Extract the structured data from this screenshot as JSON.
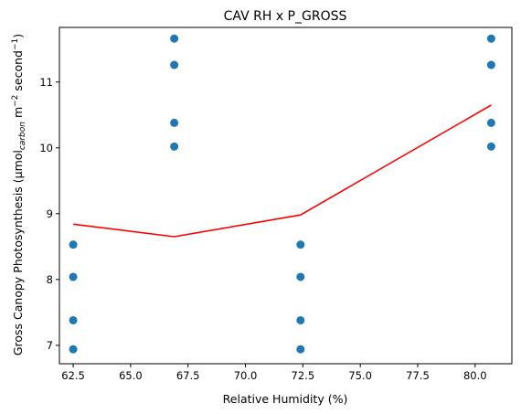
{
  "chart_data": {
    "type": "scatter",
    "title": "CAV RH x P_GROSS",
    "xlabel": "Relative Humidity (%)",
    "ylabel_parts": {
      "main": "Gross Canopy Photosynthesis (μmol",
      "sub": "carbon",
      "unit1": " m",
      "sup1": "−2",
      "unit2": " second",
      "sup2": "−1",
      "close": ")"
    },
    "xlim": [
      61.9,
      81.6
    ],
    "ylim": [
      6.72,
      11.83
    ],
    "x_ticks": [
      62.5,
      65.0,
      67.5,
      70.0,
      72.5,
      75.0,
      77.5,
      80.0
    ],
    "x_tick_labels": [
      "62.5",
      "65.0",
      "67.5",
      "70.0",
      "72.5",
      "75.0",
      "77.5",
      "80.0"
    ],
    "y_ticks": [
      7,
      8,
      9,
      10,
      11
    ],
    "y_tick_labels": [
      "7",
      "8",
      "9",
      "10",
      "11"
    ],
    "grid": false,
    "series": [
      {
        "kind": "scatter",
        "color": "#1f77b4",
        "points": [
          {
            "x": 62.5,
            "y": 8.53
          },
          {
            "x": 62.5,
            "y": 8.04
          },
          {
            "x": 62.5,
            "y": 7.38
          },
          {
            "x": 62.5,
            "y": 6.94
          },
          {
            "x": 66.9,
            "y": 11.66
          },
          {
            "x": 66.9,
            "y": 11.26
          },
          {
            "x": 66.9,
            "y": 10.38
          },
          {
            "x": 66.9,
            "y": 10.02
          },
          {
            "x": 72.4,
            "y": 8.53
          },
          {
            "x": 72.4,
            "y": 8.04
          },
          {
            "x": 72.4,
            "y": 7.38
          },
          {
            "x": 72.4,
            "y": 6.94
          },
          {
            "x": 80.7,
            "y": 11.66
          },
          {
            "x": 80.7,
            "y": 11.26
          },
          {
            "x": 80.7,
            "y": 10.38
          },
          {
            "x": 80.7,
            "y": 10.02
          }
        ]
      },
      {
        "kind": "line",
        "color": "#ff0000",
        "points": [
          {
            "x": 62.5,
            "y": 8.84
          },
          {
            "x": 66.9,
            "y": 8.65
          },
          {
            "x": 72.4,
            "y": 8.98
          },
          {
            "x": 80.7,
            "y": 10.65
          }
        ]
      }
    ]
  }
}
